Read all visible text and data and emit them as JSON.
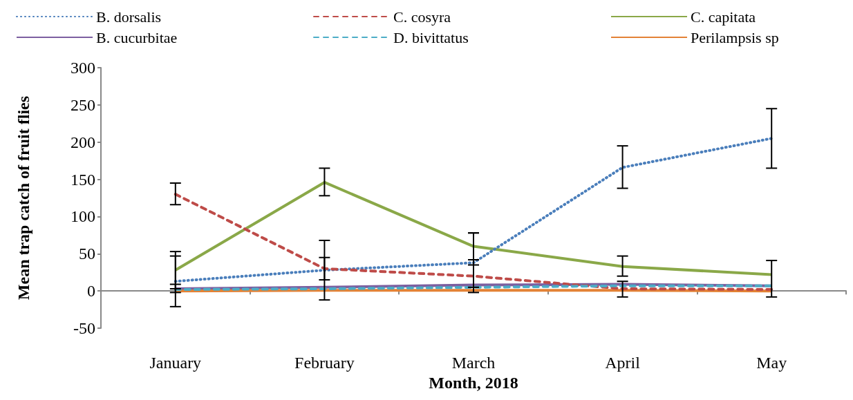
{
  "chart_data": {
    "type": "line",
    "xlabel": "Month, 2018",
    "ylabel": "Mean trap catch of fruit flies",
    "categories": [
      "January",
      "February",
      "March",
      "April",
      "May"
    ],
    "ylim": [
      -50,
      300
    ],
    "yticks": [
      -50,
      0,
      50,
      100,
      150,
      200,
      250,
      300
    ],
    "legend": "top",
    "marker": "none",
    "series": [
      {
        "name": "B. dorsalis",
        "color": "#4a7ebb",
        "line_style": "dotted",
        "values": [
          13,
          28,
          38,
          166,
          205
        ],
        "errors": [
          [
            -21,
            47
          ],
          [
            -12,
            68
          ],
          [
            -2,
            78
          ],
          [
            138,
            195
          ],
          [
            165,
            245
          ]
        ]
      },
      {
        "name": "C. cosyra",
        "color": "#be4b48",
        "line_style": "dashed",
        "values": [
          130,
          30,
          20,
          3,
          2
        ],
        "errors": [
          [
            116,
            145
          ],
          [
            15,
            45
          ],
          [
            5,
            35
          ],
          [
            -8,
            13
          ],
          null
        ]
      },
      {
        "name": "C. capitata",
        "color": "#8aa848",
        "line_style": "solid",
        "values": [
          28,
          146,
          60,
          33,
          22
        ],
        "errors": [
          [
            3,
            53
          ],
          [
            128,
            165
          ],
          [
            42,
            78
          ],
          [
            20,
            47
          ],
          [
            -8,
            41
          ]
        ]
      },
      {
        "name": "B. cucurbitae",
        "color": "#7d5fa0",
        "line_style": "solid",
        "values": [
          3,
          5,
          8,
          9,
          7
        ],
        "errors": [
          [
            -2,
            9
          ],
          null,
          null,
          null,
          null
        ]
      },
      {
        "name": "D. bivittatus",
        "color": "#4bacc6",
        "line_style": "dashed",
        "values": [
          2,
          3,
          5,
          7,
          7
        ]
      },
      {
        "name": "Perilampsis sp",
        "color": "#e38236",
        "line_style": "solid",
        "values": [
          0,
          1,
          1,
          1,
          0
        ]
      }
    ]
  }
}
